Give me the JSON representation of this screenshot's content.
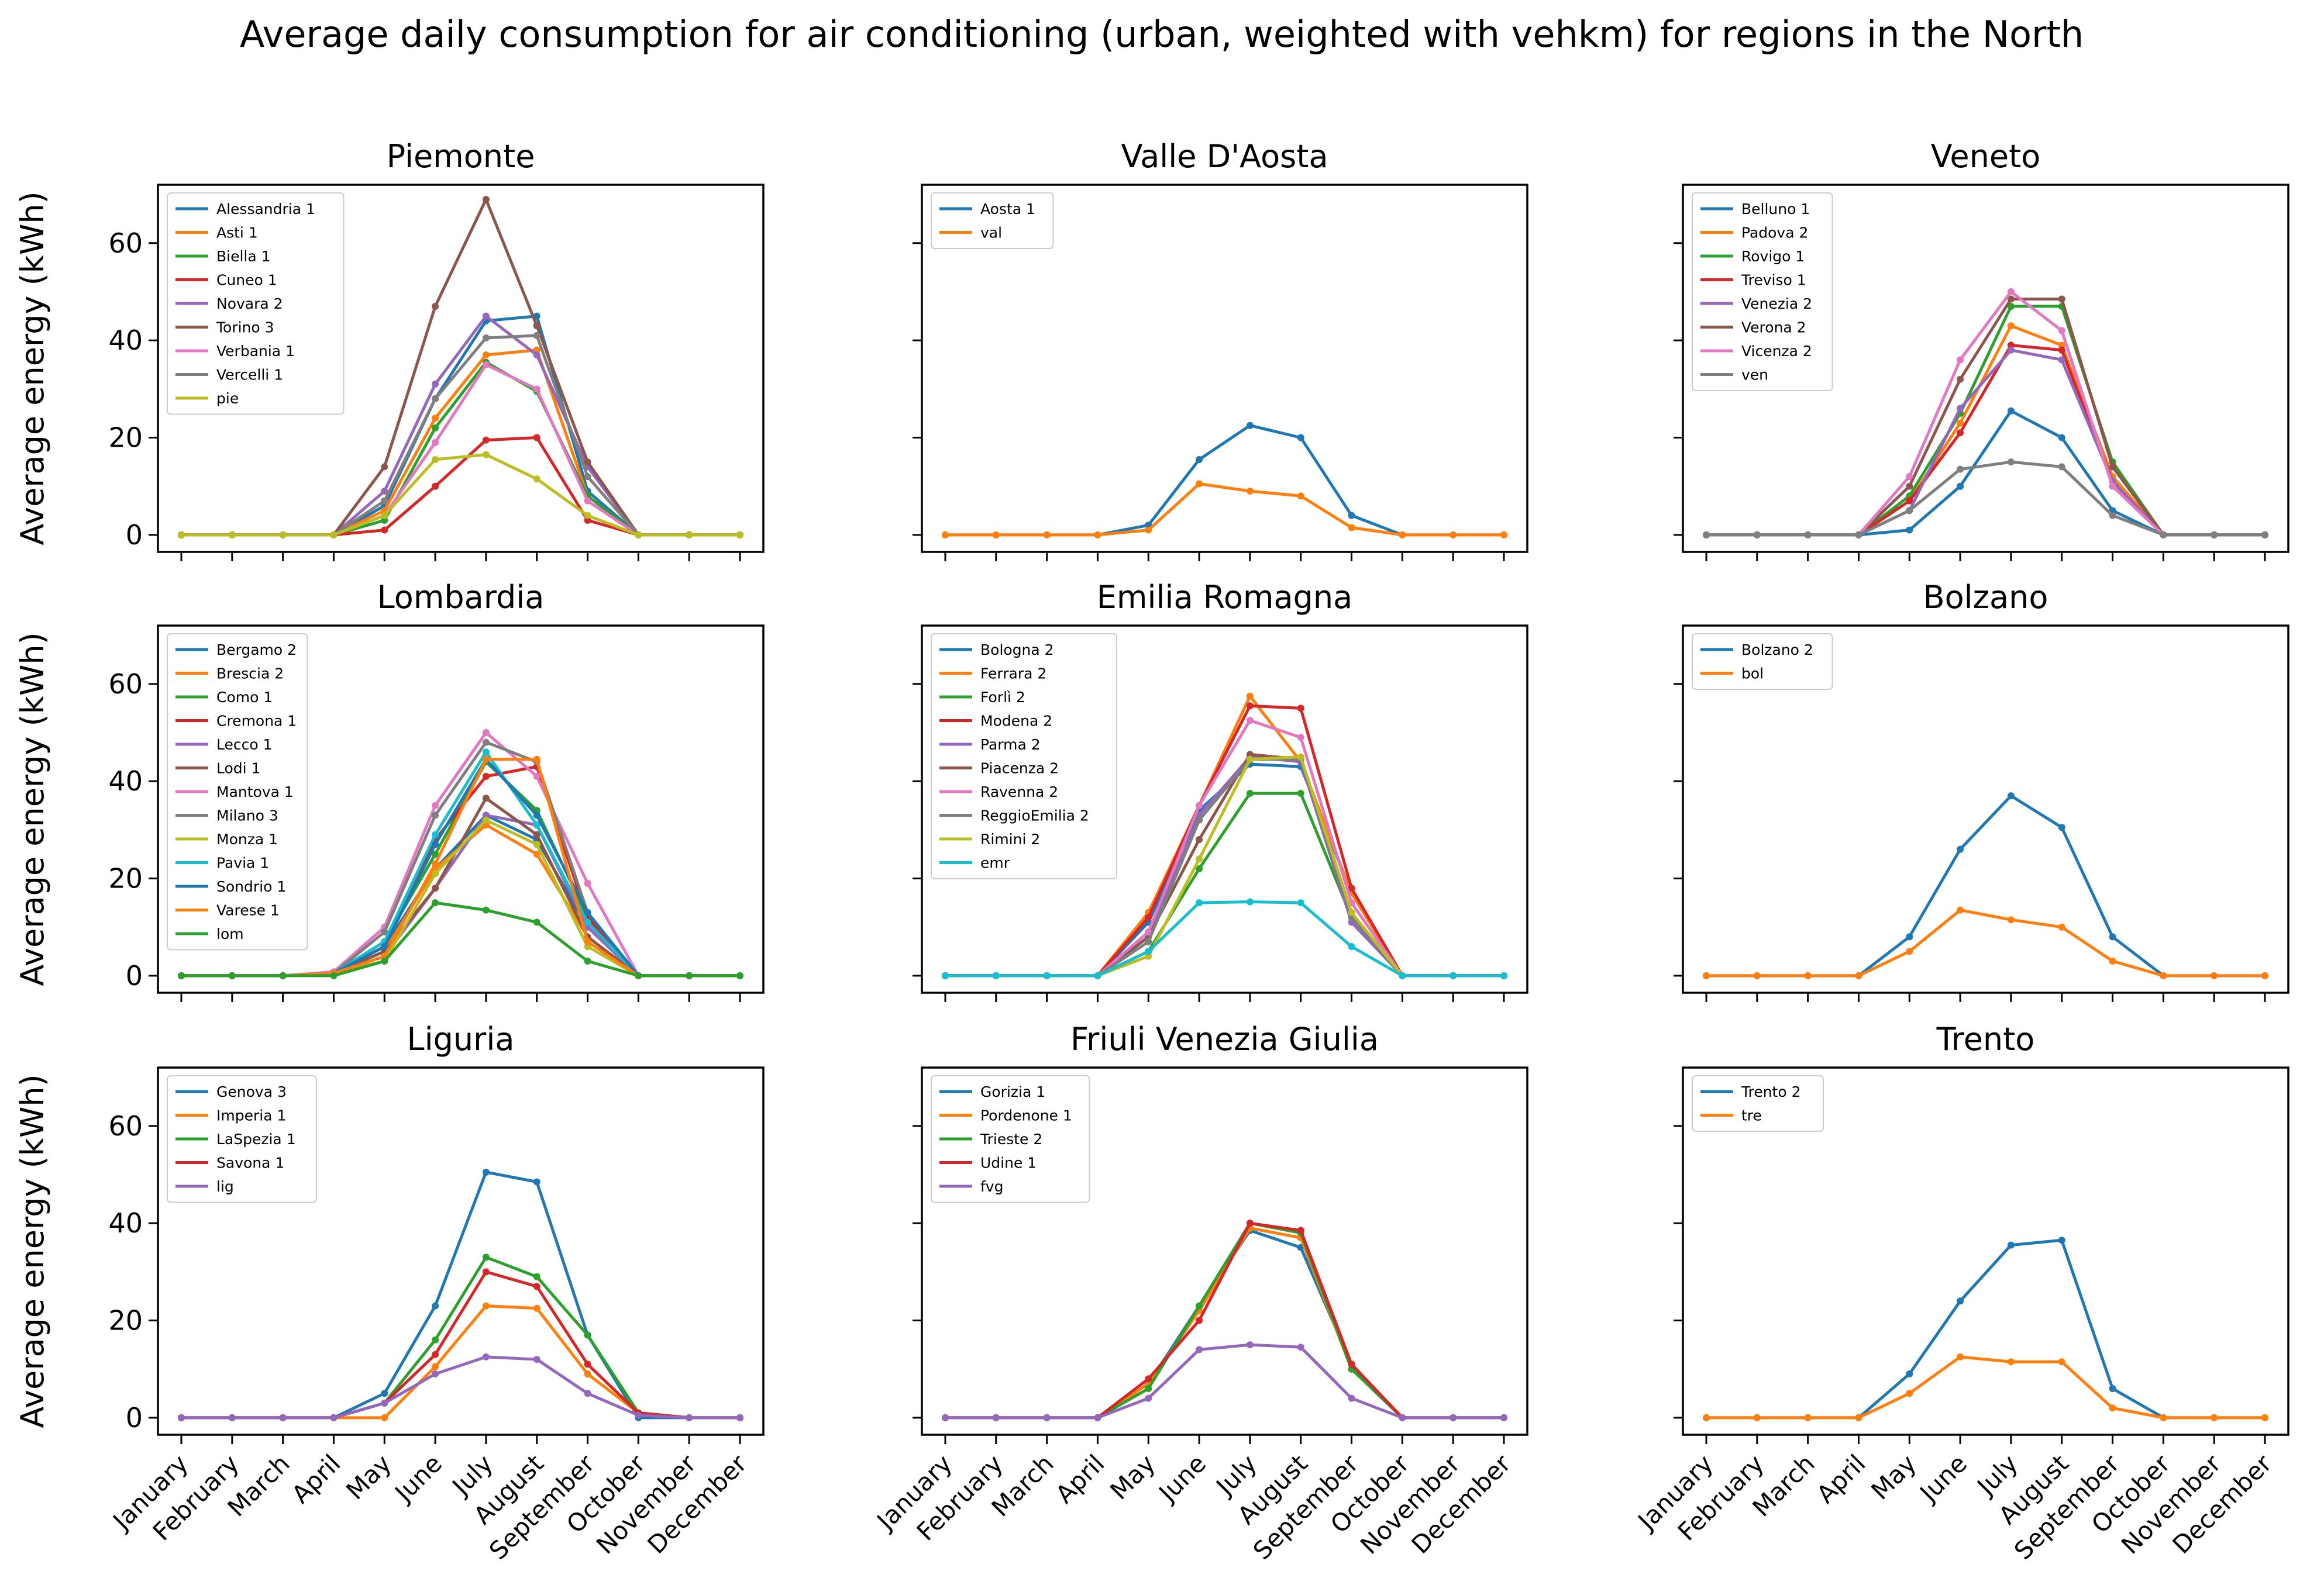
{
  "chart_data": {
    "type": "line",
    "title": "Average daily consumption for air conditioning (urban, weighted with vehkm) for regions in the North",
    "ylabel": "Average energy (kWh)",
    "xlabel": "",
    "ylim": [
      -3.5,
      72
    ],
    "yticks": [
      0,
      20,
      40,
      60
    ],
    "categories": [
      "January",
      "February",
      "March",
      "April",
      "May",
      "June",
      "July",
      "August",
      "September",
      "October",
      "November",
      "December"
    ],
    "colors": [
      "#1f77b4",
      "#ff7f0e",
      "#2ca02c",
      "#d62728",
      "#9467bd",
      "#8c564b",
      "#e377c2",
      "#7f7f7f",
      "#bcbd22",
      "#17becf",
      "#1f77b4",
      "#ff7f0e",
      "#2ca02c"
    ],
    "panels": [
      {
        "title": "Piemonte",
        "series": [
          {
            "name": "Alessandria 1",
            "values": [
              0,
              0,
              0,
              0,
              6,
              28,
              44,
              45,
              9,
              0,
              0,
              0
            ]
          },
          {
            "name": "Asti 1",
            "values": [
              0,
              0,
              0,
              0,
              5,
              24,
              37,
              38,
              8,
              0,
              0,
              0
            ]
          },
          {
            "name": "Biella 1",
            "values": [
              0,
              0,
              0,
              0,
              3,
              22,
              35.5,
              29.5,
              8,
              0,
              0,
              0
            ]
          },
          {
            "name": "Cuneo 1",
            "values": [
              0,
              0,
              0,
              0,
              1,
              10,
              19.5,
              20,
              3,
              0,
              0,
              0
            ]
          },
          {
            "name": "Novara 2",
            "values": [
              0,
              0,
              0,
              0,
              9,
              31,
              45,
              37,
              14,
              0,
              0,
              0
            ]
          },
          {
            "name": "Torino 3",
            "values": [
              0,
              0,
              0,
              0,
              14,
              47,
              69,
              43,
              15,
              0,
              0,
              0
            ]
          },
          {
            "name": "Verbania 1",
            "values": [
              0,
              0,
              0,
              0,
              4,
              19,
              35,
              30,
              7,
              0,
              0,
              0
            ]
          },
          {
            "name": "Vercelli 1",
            "values": [
              0,
              0,
              0,
              0,
              7,
              28,
              40.5,
              41,
              12,
              0,
              0,
              0
            ]
          },
          {
            "name": "pie",
            "values": [
              0,
              0,
              0,
              0,
              4,
              15.5,
              16.5,
              11.5,
              4,
              0,
              0,
              0
            ]
          }
        ]
      },
      {
        "title": "Valle D'Aosta",
        "series": [
          {
            "name": "Aosta 1",
            "values": [
              0,
              0,
              0,
              0,
              2,
              15.5,
              22.5,
              20,
              4,
              0,
              0,
              0
            ]
          },
          {
            "name": "val",
            "values": [
              0,
              0,
              0,
              0,
              1,
              10.5,
              9,
              8,
              1.5,
              0,
              0,
              0
            ]
          }
        ]
      },
      {
        "title": "Veneto",
        "series": [
          {
            "name": "Belluno 1",
            "values": [
              0,
              0,
              0,
              0,
              1,
              10,
              25.5,
              20,
              5,
              0,
              0,
              0
            ]
          },
          {
            "name": "Padova 2",
            "values": [
              0,
              0,
              0,
              0,
              7,
              23,
              43,
              39,
              12,
              0,
              0,
              0
            ]
          },
          {
            "name": "Rovigo 1",
            "values": [
              0,
              0,
              0,
              0,
              8,
              25,
              47,
              47,
              15,
              0,
              0,
              0
            ]
          },
          {
            "name": "Treviso 1",
            "values": [
              0,
              0,
              0,
              0,
              7,
              21,
              39,
              38,
              11,
              0,
              0,
              0
            ]
          },
          {
            "name": "Venezia 2",
            "values": [
              0,
              0,
              0,
              0,
              5,
              26,
              38,
              36,
              11,
              0,
              0,
              0
            ]
          },
          {
            "name": "Verona 2",
            "values": [
              0,
              0,
              0,
              0,
              10,
              32,
              48.5,
              48.5,
              14,
              0,
              0,
              0
            ]
          },
          {
            "name": "Vicenza 2",
            "values": [
              0,
              0,
              0,
              0,
              12,
              36,
              50,
              42,
              10,
              0,
              0,
              0
            ]
          },
          {
            "name": "ven",
            "values": [
              0,
              0,
              0,
              0,
              5,
              13.5,
              15,
              14,
              4,
              0,
              0,
              0
            ]
          }
        ]
      },
      {
        "title": "Lombardia",
        "series": [
          {
            "name": "Bergamo 2",
            "values": [
              0,
              0,
              0,
              0.5,
              6,
              22,
              33,
              28,
              10,
              0,
              0,
              0
            ]
          },
          {
            "name": "Brescia 2",
            "values": [
              0,
              0,
              0,
              0.5,
              5,
              22,
              31,
              25,
              8,
              0,
              0,
              0
            ]
          },
          {
            "name": "Como 1",
            "values": [
              0,
              0,
              0,
              0.5,
              7,
              25,
              44,
              34,
              12,
              0,
              0,
              0
            ]
          },
          {
            "name": "Cremona 1",
            "values": [
              0,
              0,
              0,
              0.5,
              6,
              28,
              41,
              43,
              12,
              0,
              0,
              0
            ]
          },
          {
            "name": "Lecco 1",
            "values": [
              0,
              0,
              0,
              0.5,
              4,
              18,
              33,
              31,
              10,
              0,
              0,
              0
            ]
          },
          {
            "name": "Lodi 1",
            "values": [
              0,
              0,
              0,
              0.5,
              5,
              18,
              36.5,
              29,
              8,
              0,
              0,
              0
            ]
          },
          {
            "name": "Mantova 1",
            "values": [
              0,
              0,
              0,
              0.8,
              10,
              35,
              50,
              41,
              19,
              0,
              0,
              0
            ]
          },
          {
            "name": "Milano 3",
            "values": [
              0,
              0,
              0,
              0.5,
              9,
              33,
              48,
              44,
              13,
              0,
              0,
              0
            ]
          },
          {
            "name": "Monza 1",
            "values": [
              0,
              0,
              0,
              0.5,
              3,
              21,
              32,
              27,
              6,
              0,
              0,
              0
            ]
          },
          {
            "name": "Pavia 1",
            "values": [
              0,
              0,
              0,
              0.5,
              7,
              29,
              46,
              31,
              11,
              0,
              0,
              0
            ]
          },
          {
            "name": "Sondrio 1",
            "values": [
              0,
              0,
              0,
              0.5,
              6,
              27,
              44.5,
              33,
              13,
              0,
              0,
              0
            ]
          },
          {
            "name": "Varese 1",
            "values": [
              0,
              0,
              0,
              0.5,
              4,
              23,
              44.5,
              44.5,
              7,
              0,
              0,
              0
            ]
          },
          {
            "name": "lom",
            "values": [
              0,
              0,
              0,
              0,
              3,
              15,
              13.5,
              11,
              3,
              0,
              0,
              0
            ]
          }
        ]
      },
      {
        "title": "Emilia Romagna",
        "series": [
          {
            "name": "Bologna 2",
            "values": [
              0,
              0,
              0,
              0,
              11,
              34,
              43.5,
              43,
              17,
              0,
              0,
              0
            ]
          },
          {
            "name": "Ferrara 2",
            "values": [
              0,
              0,
              0,
              0,
              13,
              35,
              57.5,
              44,
              17,
              0,
              0,
              0
            ]
          },
          {
            "name": "Forlì 2",
            "values": [
              0,
              0,
              0,
              0,
              5,
              22,
              37.5,
              37.5,
              12,
              0,
              0,
              0
            ]
          },
          {
            "name": "Modena 2",
            "values": [
              0,
              0,
              0,
              0,
              12,
              35,
              55.5,
              55,
              18,
              0,
              0,
              0
            ]
          },
          {
            "name": "Parma 2",
            "values": [
              0,
              0,
              0,
              0,
              8,
              33,
              45,
              44,
              11,
              0,
              0,
              0
            ]
          },
          {
            "name": "Piacenza 2",
            "values": [
              0,
              0,
              0,
              0,
              8,
              28,
              45.5,
              44.5,
              12,
              0,
              0,
              0
            ]
          },
          {
            "name": "Ravenna 2",
            "values": [
              0,
              0,
              0,
              0,
              9,
              35,
              52.5,
              49,
              15,
              0,
              0,
              0
            ]
          },
          {
            "name": "ReggioEmilia 2",
            "values": [
              0,
              0,
              0,
              0,
              7,
              32,
              44.5,
              44.5,
              12,
              0,
              0,
              0
            ]
          },
          {
            "name": "Rimini 2",
            "values": [
              0,
              0,
              0,
              0,
              4,
              24,
              44.5,
              45,
              13,
              0,
              0,
              0
            ]
          },
          {
            "name": "emr",
            "values": [
              0,
              0,
              0,
              0,
              5,
              15,
              15.2,
              15,
              6,
              0,
              0,
              0
            ]
          }
        ]
      },
      {
        "title": "Bolzano",
        "series": [
          {
            "name": "Bolzano 2",
            "values": [
              0,
              0,
              0,
              0,
              8,
              26,
              37,
              30.5,
              8,
              0,
              0,
              0
            ]
          },
          {
            "name": "bol",
            "values": [
              0,
              0,
              0,
              0,
              5,
              13.5,
              11.5,
              10,
              3,
              0,
              0,
              0
            ]
          }
        ]
      },
      {
        "title": "Liguria",
        "series": [
          {
            "name": "Genova 3",
            "values": [
              0,
              0,
              0,
              0,
              5,
              23,
              50.5,
              48.5,
              17,
              0,
              0,
              0
            ]
          },
          {
            "name": "Imperia 1",
            "values": [
              0,
              0,
              0,
              0,
              0,
              10.5,
              23,
              22.5,
              9,
              1,
              0,
              0
            ]
          },
          {
            "name": "LaSpezia 1",
            "values": [
              0,
              0,
              0,
              0,
              3,
              16,
              33,
              29,
              17,
              1,
              0,
              0
            ]
          },
          {
            "name": "Savona 1",
            "values": [
              0,
              0,
              0,
              0,
              3,
              13,
              30,
              27,
              11,
              1,
              0,
              0
            ]
          },
          {
            "name": "lig",
            "values": [
              0,
              0,
              0,
              0,
              3,
              9,
              12.5,
              12,
              5,
              0.5,
              0,
              0
            ]
          }
        ]
      },
      {
        "title": "Friuli Venezia Giulia",
        "series": [
          {
            "name": "Gorizia 1",
            "values": [
              0,
              0,
              0,
              0,
              7,
              23,
              38.5,
              35,
              11,
              0,
              0,
              0
            ]
          },
          {
            "name": "Pordenone 1",
            "values": [
              0,
              0,
              0,
              0,
              7,
              22,
              39,
              37,
              10,
              0,
              0,
              0
            ]
          },
          {
            "name": "Trieste 2",
            "values": [
              0,
              0,
              0,
              0,
              6,
              23,
              40,
              38,
              10,
              0,
              0,
              0
            ]
          },
          {
            "name": "Udine 1",
            "values": [
              0,
              0,
              0,
              0,
              8,
              20,
              40,
              38.5,
              11,
              0,
              0,
              0
            ]
          },
          {
            "name": "fvg",
            "values": [
              0,
              0,
              0,
              0,
              4,
              14,
              15,
              14.5,
              4,
              0,
              0,
              0
            ]
          }
        ]
      },
      {
        "title": "Trento",
        "series": [
          {
            "name": "Trento 2",
            "values": [
              0,
              0,
              0,
              0,
              9,
              24,
              35.5,
              36.5,
              6,
              0,
              0,
              0
            ]
          },
          {
            "name": "tre",
            "values": [
              0,
              0,
              0,
              0,
              5,
              12.5,
              11.5,
              11.5,
              2,
              0,
              0,
              0
            ]
          }
        ]
      }
    ]
  }
}
